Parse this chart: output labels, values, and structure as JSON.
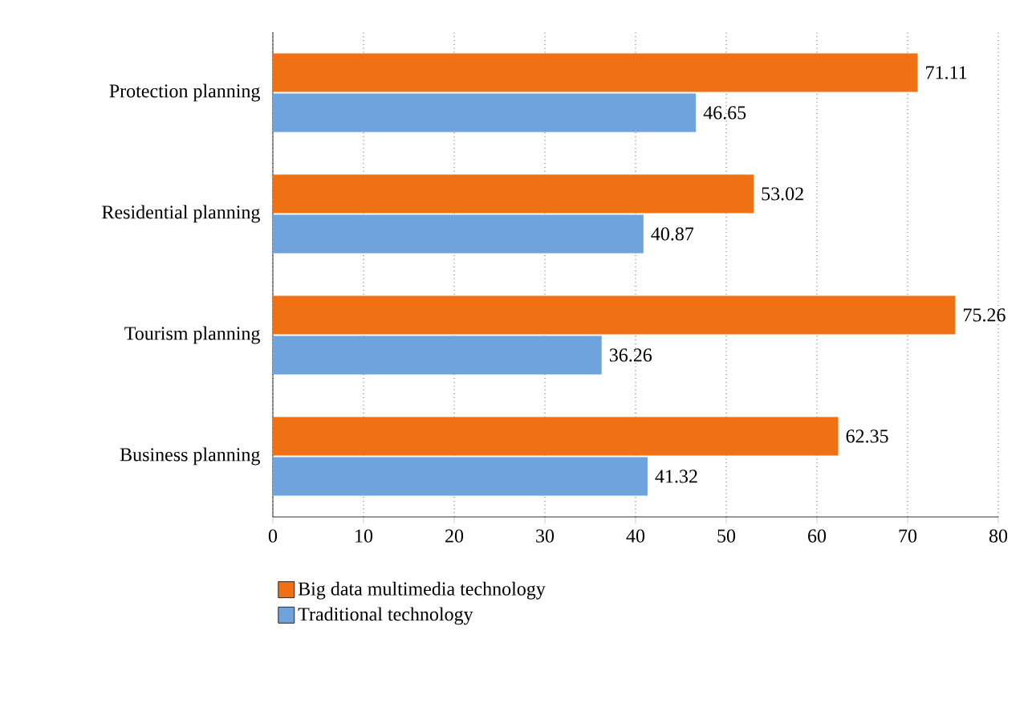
{
  "chart_data": {
    "type": "bar",
    "orientation": "horizontal",
    "categories": [
      "Protection planning",
      "Residential planning",
      "Tourism planning",
      "Business planning"
    ],
    "series": [
      {
        "name": "Big data multimedia technology",
        "color": "#f07014",
        "values": [
          71.11,
          53.02,
          75.26,
          62.35
        ]
      },
      {
        "name": "Traditional technology",
        "color": "#6fa3dc",
        "values": [
          46.65,
          40.87,
          36.26,
          41.32
        ]
      }
    ],
    "xlim": [
      0,
      80
    ],
    "xticks": [
      0,
      10,
      20,
      30,
      40,
      50,
      60,
      70,
      80
    ],
    "grid": "x",
    "legend": "bottom left",
    "data_labels": true
  }
}
